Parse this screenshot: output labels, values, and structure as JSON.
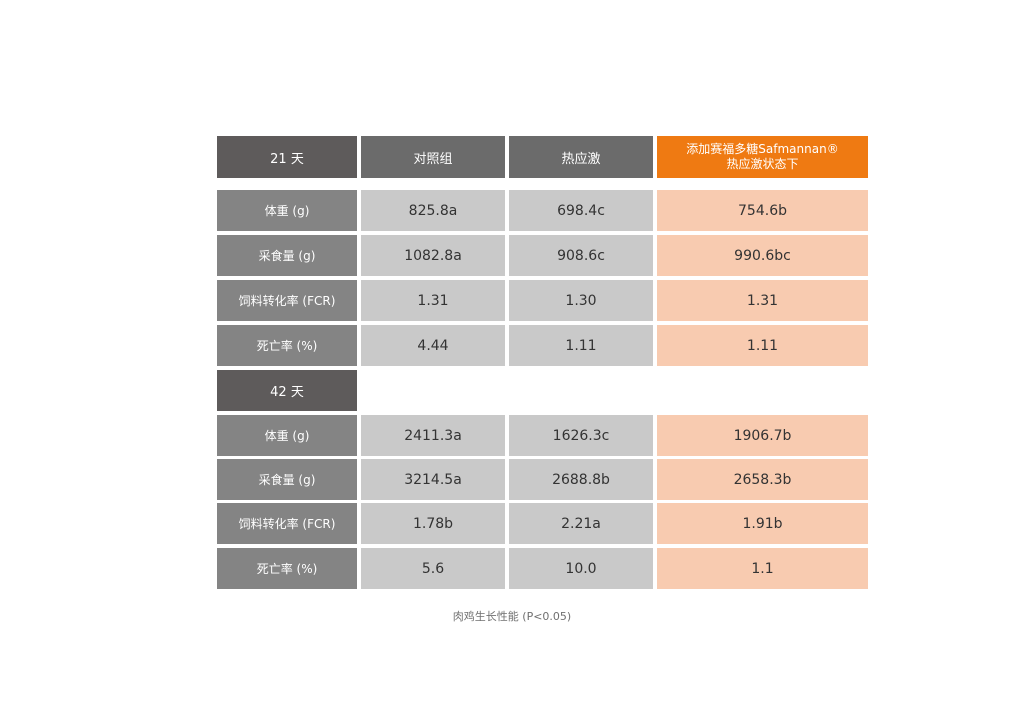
{
  "header": {
    "period": "21 天",
    "col1": "对照组",
    "col2": "热应激",
    "col3_line1": "添加赛福多糖Safmannan®",
    "col3_line2": "热应激状态下"
  },
  "day21": {
    "rows": [
      {
        "label": "体重 (g)",
        "v1": "825.8a",
        "v2": "698.4c",
        "v3": "754.6b"
      },
      {
        "label": "采食量 (g)",
        "v1": "1082.8a",
        "v2": "908.6c",
        "v3": "990.6bc"
      },
      {
        "label": "饲料转化率 (FCR)",
        "v1": "1.31",
        "v2": "1.30",
        "v3": "1.31"
      },
      {
        "label": "死亡率 (%)",
        "v1": "4.44",
        "v2": "1.11",
        "v3": "1.11"
      }
    ]
  },
  "day42": {
    "period": "42 天",
    "rows": [
      {
        "label": "体重 (g)",
        "v1": "2411.3a",
        "v2": "1626.3c",
        "v3": "1906.7b"
      },
      {
        "label": "采食量 (g)",
        "v1": "3214.5a",
        "v2": "2688.8b",
        "v3": "2658.3b"
      },
      {
        "label": "饲料转化率 (FCR)",
        "v1": "1.78b",
        "v2": "2.21a",
        "v3": "1.91b"
      },
      {
        "label": "死亡率 (%)",
        "v1": "5.6",
        "v2": "10.0",
        "v3": "1.1"
      }
    ]
  },
  "caption": "肉鸡生长性能 (P<0.05)",
  "colors": {
    "header_dark": "#5e5b5b",
    "header_gray": "#6b6b6b",
    "label_gray": "#848484",
    "value_gray": "#c9c9c9",
    "accent_orange": "#ef7a12",
    "accent_light": "#f8cbb0"
  }
}
